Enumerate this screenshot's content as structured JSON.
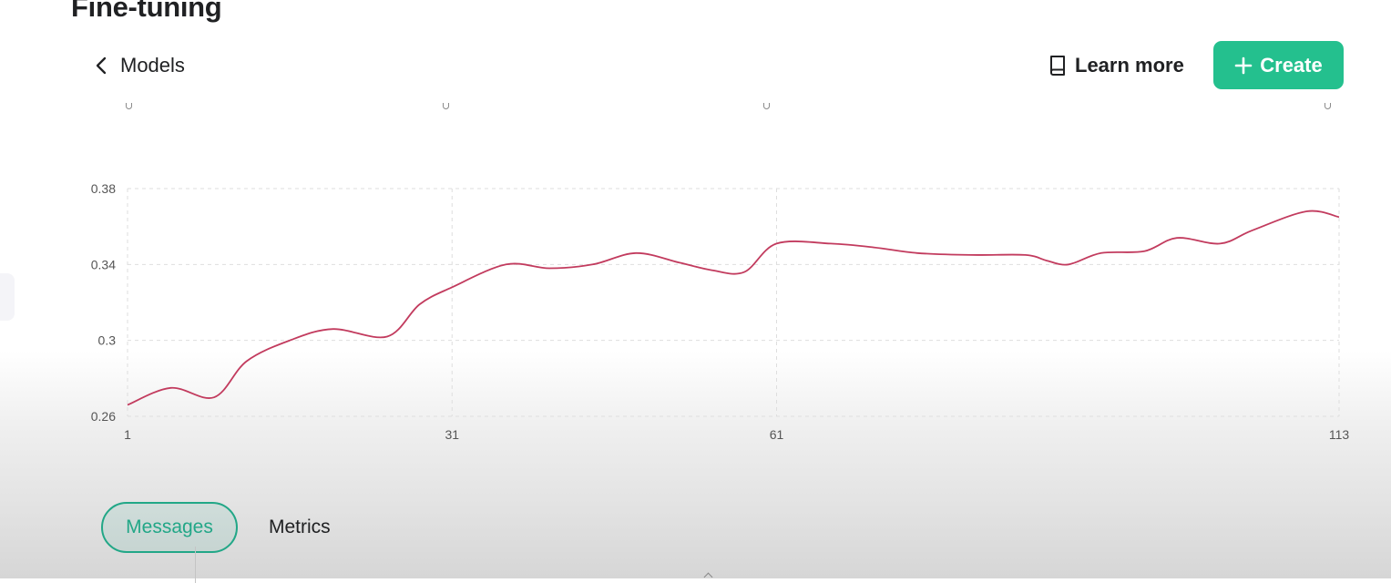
{
  "header": {
    "title": "Fine-tuning",
    "back_label": "Models",
    "learn_more_label": "Learn more",
    "create_label": "Create"
  },
  "tabs": [
    {
      "label": "Messages",
      "active": true
    },
    {
      "label": "Metrics",
      "active": false
    }
  ],
  "colors": {
    "accent": "#24c08e",
    "active_tab": "#22a787",
    "series_line": "#c23b5e",
    "grid": "#dedede"
  },
  "icons": {
    "back": "chevron-left-icon",
    "learn_more": "book-icon",
    "create": "plus-icon"
  },
  "chart_data": {
    "type": "line",
    "title": "",
    "xlabel": "",
    "ylabel": "",
    "xlim": [
      1,
      113
    ],
    "ylim": [
      0.26,
      0.38
    ],
    "x_ticks": [
      1,
      31,
      61,
      113
    ],
    "x_tick_labels": [
      "1",
      "31",
      "61",
      "113"
    ],
    "y_ticks": [
      0.26,
      0.3,
      0.34,
      0.38
    ],
    "y_tick_labels": [
      "0.26",
      "0.3",
      "0.34",
      "0.38"
    ],
    "grid": true,
    "legend": "none",
    "series": [
      {
        "x": [
          1,
          5,
          9,
          12,
          16,
          20,
          25,
          28,
          31,
          36,
          40,
          44,
          48,
          52,
          55,
          58,
          61,
          66,
          70,
          74,
          79,
          84,
          86,
          88,
          91,
          95,
          98,
          102,
          105,
          110,
          113
        ],
        "y": [
          0.266,
          0.275,
          0.27,
          0.289,
          0.3,
          0.306,
          0.302,
          0.319,
          0.328,
          0.34,
          0.338,
          0.34,
          0.346,
          0.341,
          0.337,
          0.336,
          0.351,
          0.351,
          0.349,
          0.346,
          0.345,
          0.345,
          0.342,
          0.34,
          0.346,
          0.347,
          0.354,
          0.351,
          0.358,
          0.368,
          0.365
        ]
      }
    ]
  }
}
